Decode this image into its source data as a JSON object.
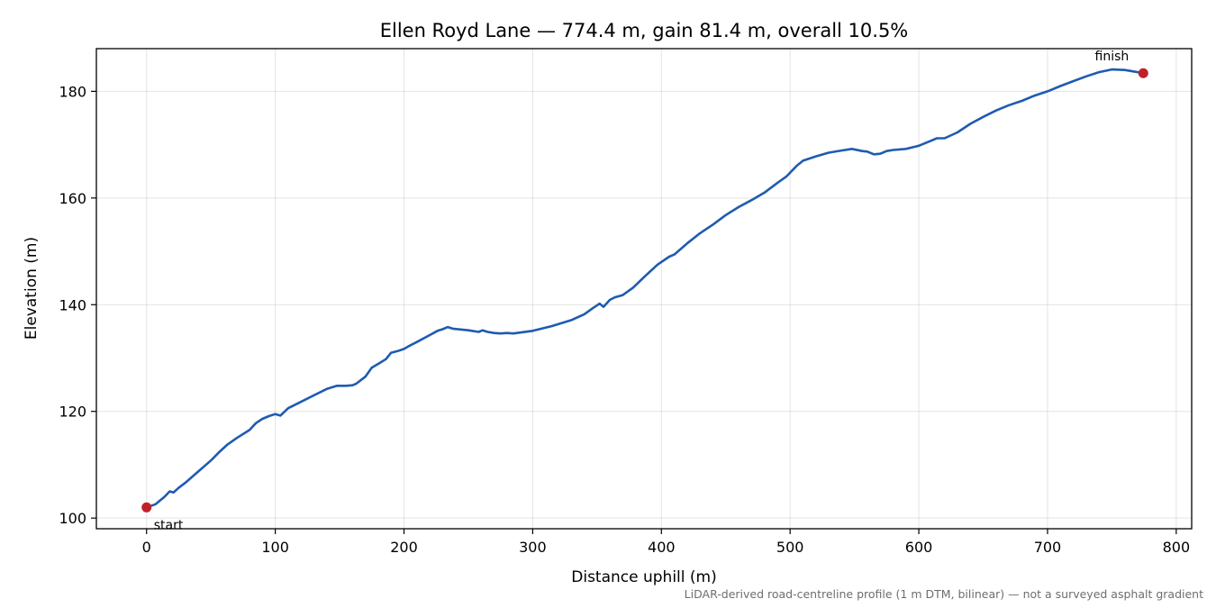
{
  "chart_data": {
    "type": "line",
    "title": "Ellen Royd Lane — 774.4 m, gain 81.4 m, overall 10.5%",
    "xlabel": "Distance uphill (m)",
    "ylabel": "Elevation (m)",
    "xlim": [
      -39,
      812
    ],
    "ylim": [
      98,
      188
    ],
    "xticks": [
      0,
      100,
      200,
      300,
      400,
      500,
      600,
      700,
      800
    ],
    "yticks": [
      100,
      120,
      140,
      160,
      180
    ],
    "grid": true,
    "note": "LiDAR-derived road-centreline profile (1 m DTM, bilinear) — not a surveyed asphalt gradient",
    "line_color": "#1f5bb0",
    "marker_color": "#c0202a",
    "markers": [
      {
        "label": "start",
        "x": 0,
        "y": 102.0
      },
      {
        "label": "finish",
        "x": 774.4,
        "y": 183.4
      }
    ],
    "series": [
      {
        "x": [
          0,
          7,
          14,
          18,
          21,
          25,
          30,
          40,
          50,
          57,
          63,
          70,
          80,
          85,
          90,
          95,
          100,
          104,
          110,
          120,
          130,
          140,
          148,
          155,
          160,
          163,
          170,
          175,
          180,
          186,
          190,
          195,
          200,
          205,
          210,
          220,
          226,
          230,
          234,
          238,
          250,
          258,
          261,
          265,
          270,
          275,
          280,
          285,
          300,
          315,
          330,
          340,
          347,
          352,
          355,
          360,
          364,
          370,
          378,
          388,
          397,
          406,
          410,
          420,
          430,
          440,
          450,
          460,
          470,
          480,
          490,
          497,
          505,
          510,
          520,
          530,
          540,
          548,
          556,
          560,
          565,
          570,
          575,
          580,
          590,
          600,
          610,
          614,
          620,
          630,
          640,
          650,
          660,
          670,
          680,
          690,
          700,
          710,
          720,
          730,
          740,
          750,
          760,
          774.4
        ],
        "y": [
          102.0,
          102.6,
          104.0,
          105.0,
          104.8,
          105.7,
          106.6,
          108.7,
          110.8,
          112.5,
          113.8,
          115.0,
          116.5,
          117.8,
          118.6,
          119.1,
          119.5,
          119.2,
          120.6,
          121.8,
          123.0,
          124.2,
          124.8,
          124.8,
          124.9,
          125.2,
          126.5,
          128.2,
          128.9,
          129.8,
          131.0,
          131.3,
          131.7,
          132.4,
          133.0,
          134.3,
          135.1,
          135.4,
          135.8,
          135.5,
          135.2,
          134.9,
          135.2,
          134.9,
          134.7,
          134.6,
          134.7,
          134.6,
          135.1,
          136.0,
          137.1,
          138.2,
          139.4,
          140.2,
          139.6,
          140.9,
          141.4,
          141.8,
          143.2,
          145.5,
          147.5,
          149.0,
          149.4,
          151.5,
          153.4,
          155.0,
          156.8,
          158.3,
          159.6,
          161.0,
          162.8,
          164.0,
          166.0,
          167.0,
          167.8,
          168.5,
          168.9,
          169.2,
          168.8,
          168.7,
          168.2,
          168.3,
          168.8,
          169.0,
          169.2,
          169.8,
          170.8,
          171.2,
          171.2,
          172.3,
          173.9,
          175.2,
          176.4,
          177.4,
          178.2,
          179.2,
          180.0,
          181.0,
          181.9,
          182.8,
          183.6,
          184.1,
          184.0,
          183.4
        ]
      }
    ]
  }
}
